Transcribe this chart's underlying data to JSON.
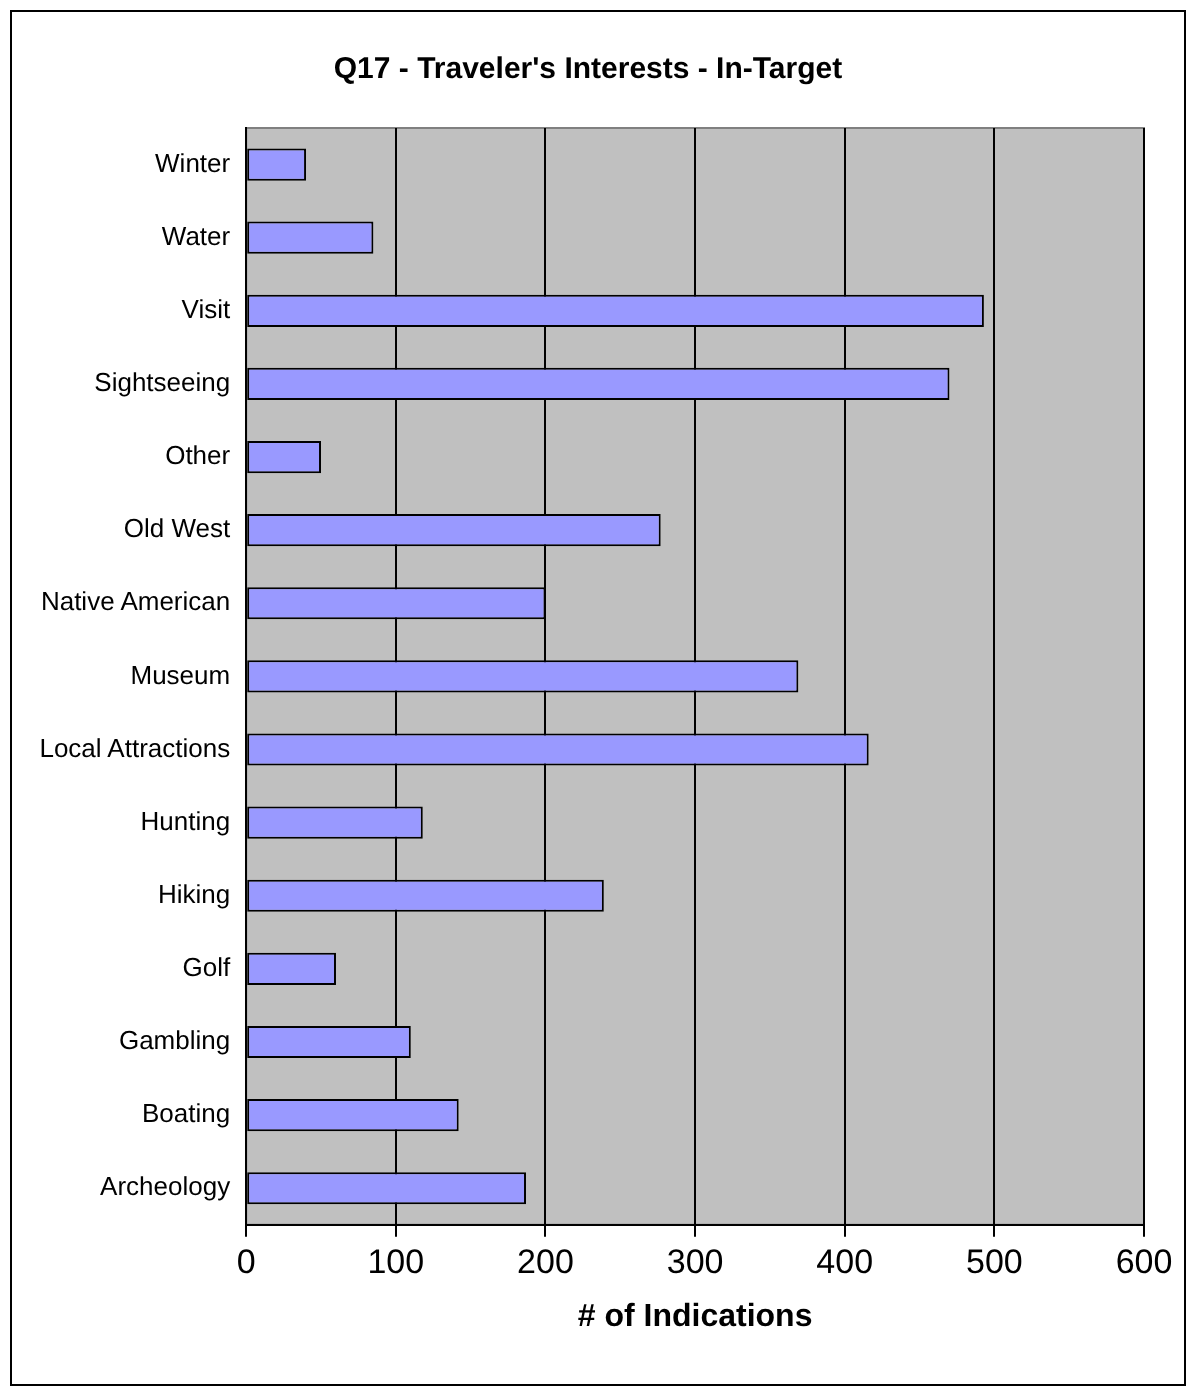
{
  "chart_data": {
    "type": "bar",
    "orientation": "horizontal",
    "title": "Q17 - Traveler's Interests - In-Target",
    "xlabel": "# of Indications",
    "categories": [
      "Winter",
      "Water",
      "Visit",
      "Sightseeing",
      "Other",
      "Old West",
      "Native American",
      "Museum",
      "Local Attractions",
      "Hunting",
      "Hiking",
      "Golf",
      "Gambling",
      "Boating",
      "Archeology"
    ],
    "values": [
      40,
      85,
      493,
      470,
      50,
      277,
      200,
      369,
      416,
      118,
      239,
      60,
      110,
      142,
      187
    ],
    "color": "#9999ff",
    "xlim": [
      0,
      600
    ],
    "xticks": [
      0,
      100,
      200,
      300,
      400,
      500,
      600
    ],
    "grid": "x",
    "legend": false
  }
}
